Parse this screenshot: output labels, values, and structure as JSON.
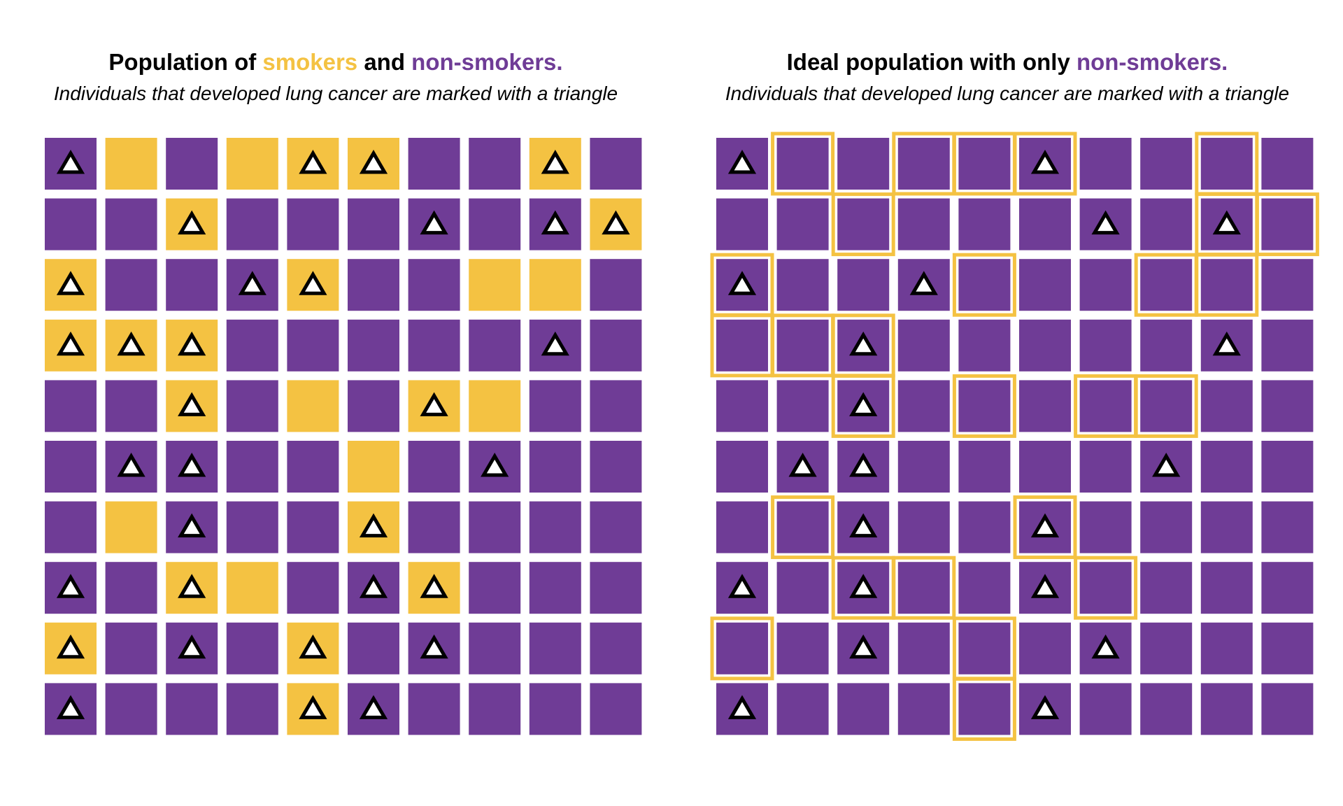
{
  "colors": {
    "smoker": "#f4c242",
    "non_smoker": "#6f3c96",
    "outline": "#f4c242",
    "triangle_fill": "#ffffff",
    "triangle_stroke": "#000000"
  },
  "panels": [
    {
      "title": {
        "prefix": "Population of ",
        "highlight1": "smokers",
        "mid": " and ",
        "highlight2": "non-smokers."
      },
      "subtitle": "Individuals that developed lung cancer are marked with a triangle",
      "grid": [
        "PT S P S ST ST P P ST P",
        "P P ST P P P PT P PT ST",
        "ST P P PT ST P P S S P",
        "ST ST ST P P P P P PT P",
        "P P ST P S P ST S P P",
        "P PT PT P P S P PT P P",
        "P S PT P P ST P P P P",
        "PT P ST S P PT ST P P P",
        "ST P PT P ST P PT P P P",
        "PT P P P ST PT P P P P"
      ]
    },
    {
      "title": {
        "prefix": "Ideal population with only ",
        "highlight1": "",
        "mid": "",
        "highlight2": "non-smokers."
      },
      "subtitle": "Individuals that developed lung cancer are marked with a triangle",
      "grid": [
        "PT PO P PO PO POT P P PO P",
        "P P PO P P P PT P POT PO",
        "POT P P PT PO P P PO PO P",
        "PO PO POT P P P P P PT P",
        "P P POT P PO P PO PO P P",
        "P PT PT P P P P PT P P",
        "P PO PT P P POT P P P P",
        "PT P POT PO P PT PO P P P",
        "PO P PT P PO P PT P P P",
        "PT P P P PO PT P P P P"
      ]
    }
  ]
}
